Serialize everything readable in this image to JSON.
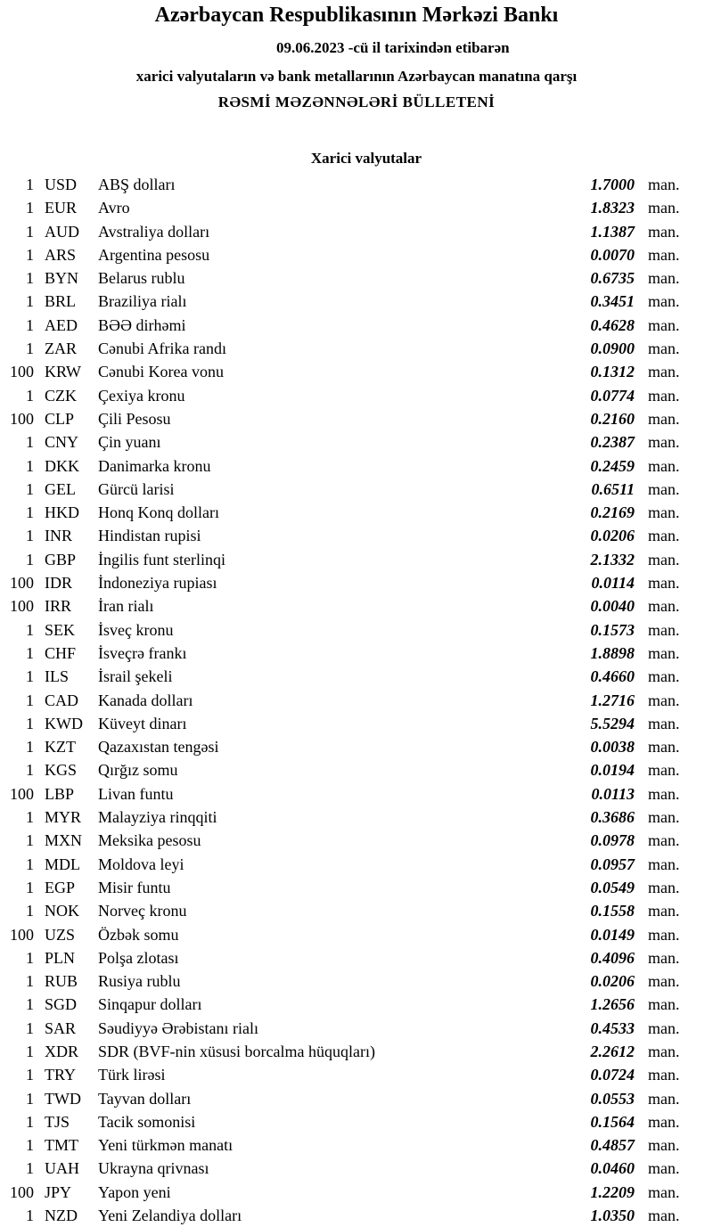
{
  "header": {
    "title": "Azərbaycan Respublikasının Mərkəzi Bankı",
    "date_line": "09.06.2023  -cü il tarixindən etibarən",
    "subtitle": "xarici valyutaların və bank metallarının Azərbaycan manatına qarşı",
    "bulletin": "RƏSMİ MƏZƏNNƏLƏRİ BÜLLETENİ"
  },
  "section": {
    "title": "Xarici valyutalar"
  },
  "rates": [
    {
      "amount": "1",
      "code": "USD",
      "name": "ABŞ dolları",
      "value": "1.7000",
      "unit": "man."
    },
    {
      "amount": "1",
      "code": "EUR",
      "name": "Avro",
      "value": "1.8323",
      "unit": "man."
    },
    {
      "amount": "1",
      "code": "AUD",
      "name": "Avstraliya dolları",
      "value": "1.1387",
      "unit": "man."
    },
    {
      "amount": "1",
      "code": "ARS",
      "name": "Argentina pesosu",
      "value": "0.0070",
      "unit": "man."
    },
    {
      "amount": "1",
      "code": "BYN",
      "name": "Belarus rublu",
      "value": "0.6735",
      "unit": "man."
    },
    {
      "amount": "1",
      "code": "BRL",
      "name": "Braziliya rialı",
      "value": "0.3451",
      "unit": "man."
    },
    {
      "amount": "1",
      "code": "AED",
      "name": "BƏƏ dirhəmi",
      "value": "0.4628",
      "unit": "man."
    },
    {
      "amount": "1",
      "code": "ZAR",
      "name": "Cənubi Afrika randı",
      "value": "0.0900",
      "unit": "man."
    },
    {
      "amount": "100",
      "code": "KRW",
      "name": "Cənubi Korea vonu",
      "value": "0.1312",
      "unit": "man."
    },
    {
      "amount": "1",
      "code": "CZK",
      "name": "Çexiya kronu",
      "value": "0.0774",
      "unit": "man."
    },
    {
      "amount": "100",
      "code": "CLP",
      "name": "Çili Pesosu",
      "value": "0.2160",
      "unit": "man."
    },
    {
      "amount": "1",
      "code": "CNY",
      "name": "Çin yuanı",
      "value": "0.2387",
      "unit": "man."
    },
    {
      "amount": "1",
      "code": "DKK",
      "name": "Danimarka kronu",
      "value": "0.2459",
      "unit": "man."
    },
    {
      "amount": "1",
      "code": "GEL",
      "name": "Gürcü larisi",
      "value": "0.6511",
      "unit": "man."
    },
    {
      "amount": "1",
      "code": "HKD",
      "name": "Honq Konq dolları",
      "value": "0.2169",
      "unit": "man."
    },
    {
      "amount": "1",
      "code": "INR",
      "name": "Hindistan rupisi",
      "value": "0.0206",
      "unit": "man."
    },
    {
      "amount": "1",
      "code": "GBP",
      "name": "İngilis funt sterlinqi",
      "value": "2.1332",
      "unit": "man."
    },
    {
      "amount": "100",
      "code": "IDR",
      "name": "İndoneziya rupiası",
      "value": "0.0114",
      "unit": "man."
    },
    {
      "amount": "100",
      "code": "IRR",
      "name": "İran rialı",
      "value": "0.0040",
      "unit": "man."
    },
    {
      "amount": "1",
      "code": "SEK",
      "name": "İsveç kronu",
      "value": "0.1573",
      "unit": "man."
    },
    {
      "amount": "1",
      "code": "CHF",
      "name": "İsveçrə frankı",
      "value": "1.8898",
      "unit": "man."
    },
    {
      "amount": "1",
      "code": "ILS",
      "name": "İsrail şekeli",
      "value": "0.4660",
      "unit": "man."
    },
    {
      "amount": "1",
      "code": "CAD",
      "name": "Kanada dolları",
      "value": "1.2716",
      "unit": "man."
    },
    {
      "amount": "1",
      "code": "KWD",
      "name": "Küveyt dinarı",
      "value": "5.5294",
      "unit": "man."
    },
    {
      "amount": "1",
      "code": "KZT",
      "name": "Qazaxıstan tengəsi",
      "value": "0.0038",
      "unit": "man."
    },
    {
      "amount": "1",
      "code": "KGS",
      "name": "Qırğız somu",
      "value": "0.0194",
      "unit": "man."
    },
    {
      "amount": "100",
      "code": "LBP",
      "name": "Livan funtu",
      "value": "0.0113",
      "unit": "man."
    },
    {
      "amount": "1",
      "code": "MYR",
      "name": "Malayziya rinqqiti",
      "value": "0.3686",
      "unit": "man."
    },
    {
      "amount": "1",
      "code": "MXN",
      "name": "Meksika pesosu",
      "value": "0.0978",
      "unit": "man."
    },
    {
      "amount": "1",
      "code": "MDL",
      "name": "Moldova leyi",
      "value": "0.0957",
      "unit": "man."
    },
    {
      "amount": "1",
      "code": "EGP",
      "name": "Misir funtu",
      "value": "0.0549",
      "unit": "man."
    },
    {
      "amount": "1",
      "code": "NOK",
      "name": "Norveç kronu",
      "value": "0.1558",
      "unit": "man."
    },
    {
      "amount": "100",
      "code": "UZS",
      "name": "Özbək somu",
      "value": "0.0149",
      "unit": "man."
    },
    {
      "amount": "1",
      "code": "PLN",
      "name": "Polşa zlotası",
      "value": "0.4096",
      "unit": "man."
    },
    {
      "amount": "1",
      "code": "RUB",
      "name": "Rusiya rublu",
      "value": "0.0206",
      "unit": "man."
    },
    {
      "amount": "1",
      "code": "SGD",
      "name": "Sinqapur dolları",
      "value": "1.2656",
      "unit": "man."
    },
    {
      "amount": "1",
      "code": "SAR",
      "name": "Səudiyyə Ərəbistanı rialı",
      "value": "0.4533",
      "unit": "man."
    },
    {
      "amount": "1",
      "code": "XDR",
      "name": "SDR (BVF-nin xüsusi borcalma hüquqları)",
      "value": "2.2612",
      "unit": "man."
    },
    {
      "amount": "1",
      "code": "TRY",
      "name": "Türk lirəsi",
      "value": "0.0724",
      "unit": "man."
    },
    {
      "amount": "1",
      "code": "TWD",
      "name": "Tayvan dolları",
      "value": "0.0553",
      "unit": "man."
    },
    {
      "amount": "1",
      "code": "TJS",
      "name": "Tacik somonisi",
      "value": "0.1564",
      "unit": "man."
    },
    {
      "amount": "1",
      "code": "TMT",
      "name": "Yeni türkmən manatı",
      "value": "0.4857",
      "unit": "man."
    },
    {
      "amount": "1",
      "code": "UAH",
      "name": "Ukrayna qrivnası",
      "value": "0.0460",
      "unit": "man."
    },
    {
      "amount": "100",
      "code": "JPY",
      "name": "Yapon yeni",
      "value": "1.2209",
      "unit": "man."
    },
    {
      "amount": "1",
      "code": "NZD",
      "name": "Yeni Zelandiya dolları",
      "value": "1.0350",
      "unit": "man."
    }
  ]
}
